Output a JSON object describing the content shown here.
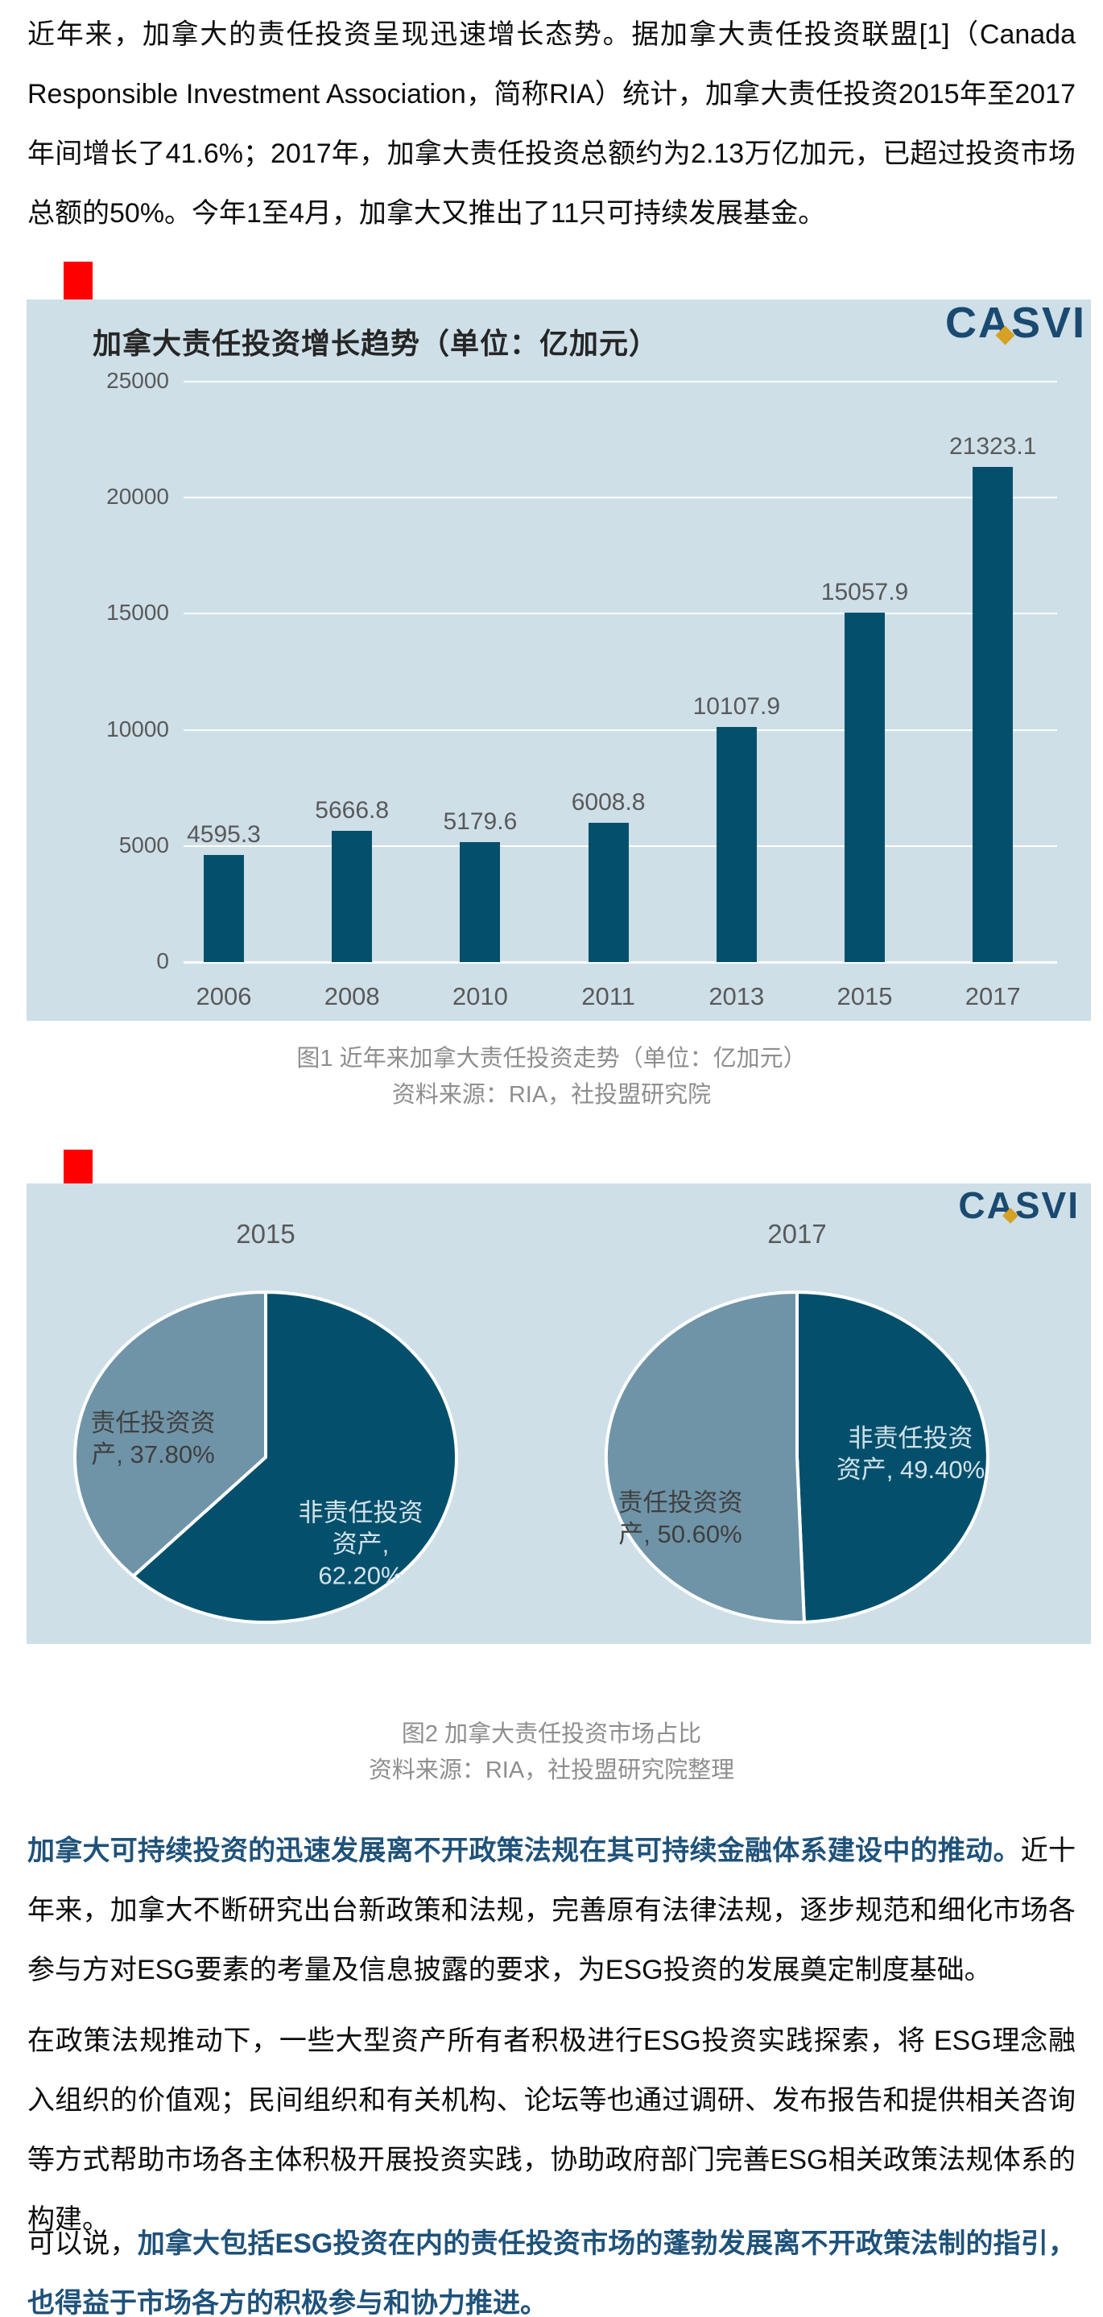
{
  "paragraphs": {
    "p1": "近年来，加拿大的责任投资呈现迅速增长态势。据加拿大责任投资联盟[1]（Canada Responsible Investment Association，简称RIA）统计，加拿大责任投资2015年至2017年间增长了41.6%；2017年，加拿大责任投资总额约为2.13万亿加元，已超过投资市场总额的50%。今年1至4月，加拿大又推出了11只可持续发展基金。",
    "p2_lead": "加拿大可持续投资的迅速发展离不开政策法规在其可持续金融体系建设中的推动。",
    "p2_rest": "近十年来，加拿大不断研究出台新政策和法规，完善原有法律法规，逐步规范和细化市场各参与方对ESG要素的考量及信息披露的要求，为ESG投资的发展奠定制度基础。",
    "p3": "在政策法规推动下，一些大型资产所有者积极进行ESG投资实践探索，将 ESG理念融入组织的价值观；民间组织和有关机构、论坛等也通过调研、发布报告和提供相关咨询等方式帮助市场各主体积极开展投资实践，协助政府部门完善ESG相关政策法规体系的构建。",
    "p4_lead": "可以说，",
    "p4_bold": "加拿大包括ESG投资在内的责任投资市场的蓬勃发展离不开政策法制的指引，也得益于市场各方的积极参与和协力推进。"
  },
  "figure1": {
    "logo_text": "CASVI",
    "title": "加拿大责任投资增长趋势（单位：亿加元）",
    "caption_line1": "图1  近年来加拿大责任投资走势（单位：亿加元）",
    "caption_line2": "资料来源：RIA，社投盟研究院"
  },
  "figure2": {
    "logo_text": "CASVI",
    "caption_line1": "图2  加拿大责任投资市场占比",
    "caption_line2": "资料来源：RIA，社投盟研究院整理"
  },
  "colors": {
    "panel_bg": "#cedfe8",
    "bar_dark_teal": "#04506c",
    "pie_light_slice": "#6f94a8",
    "accent_red": "#ff0000",
    "logo_navy": "#1a4a70",
    "logo_gold": "#d6a125",
    "lead_text_blue": "#1f527a",
    "label_gray": "#595959",
    "caption_gray": "#8e8e8e"
  },
  "chart_data": [
    {
      "type": "bar",
      "title": "加拿大责任投资增长趋势（单位：亿加元）",
      "categories": [
        "2006",
        "2008",
        "2010",
        "2011",
        "2013",
        "2015",
        "2017"
      ],
      "values": [
        4595.3,
        5666.8,
        5179.6,
        6008.8,
        10107.9,
        15057.9,
        21323.1
      ],
      "value_labels": [
        "4595.3",
        "5666.8",
        "5179.6",
        "6008.8",
        "10107.9",
        "15057.9",
        "21323.1"
      ],
      "ylabel": "",
      "xlabel": "",
      "ylim": [
        0,
        25000
      ],
      "yticks": [
        "0",
        "5000",
        "10000",
        "15000",
        "20000",
        "25000"
      ],
      "grid": true,
      "legend": false,
      "bar_color": "#04506c"
    },
    {
      "type": "pie",
      "title": "加拿大责任投资市场占比",
      "pies": [
        {
          "year": "2015",
          "slices": [
            {
              "name": "非责任投资资产",
              "value": 62.2,
              "color_key": "dark",
              "label_text": "非责任投资\n资产,\n62.20%"
            },
            {
              "name": "责任投资资产",
              "value": 37.8,
              "color_key": "light",
              "label_text": "责任投资资\n产, 37.80%"
            }
          ]
        },
        {
          "year": "2017",
          "slices": [
            {
              "name": "非责任投资资产",
              "value": 49.4,
              "color_key": "dark",
              "label_text": "非责任投资\n资产, 49.40%"
            },
            {
              "name": "责任投资资产",
              "value": 50.6,
              "color_key": "light",
              "label_text": "责任投资资\n产, 50.60%"
            }
          ]
        }
      ]
    }
  ]
}
